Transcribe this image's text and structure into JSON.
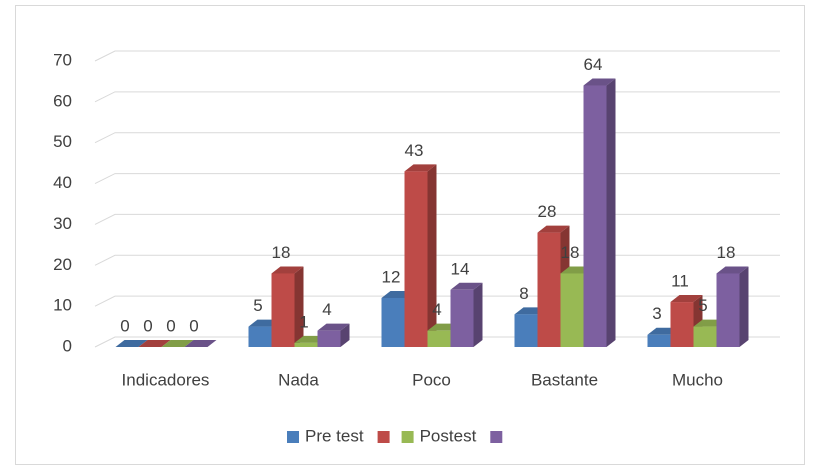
{
  "chart_data": {
    "type": "bar3d",
    "categories": [
      "Indicadores",
      "Nada",
      "Poco",
      "Bastante",
      "Mucho"
    ],
    "series": [
      {
        "name": "Pre test",
        "color": "#4a7ebb",
        "values": [
          0,
          5,
          12,
          8,
          3
        ]
      },
      {
        "color": "#be4b48",
        "values": [
          0,
          18,
          43,
          28,
          11
        ]
      },
      {
        "name": "Postest",
        "color": "#98b954",
        "values": [
          0,
          1,
          4,
          18,
          5
        ]
      },
      {
        "color": "#7d60a0",
        "values": [
          0,
          4,
          14,
          64,
          18
        ]
      }
    ],
    "ylim": [
      0,
      70
    ],
    "yticks": [
      0,
      10,
      20,
      30,
      40,
      50,
      60,
      70
    ],
    "grid": true,
    "legend": "bottom"
  }
}
